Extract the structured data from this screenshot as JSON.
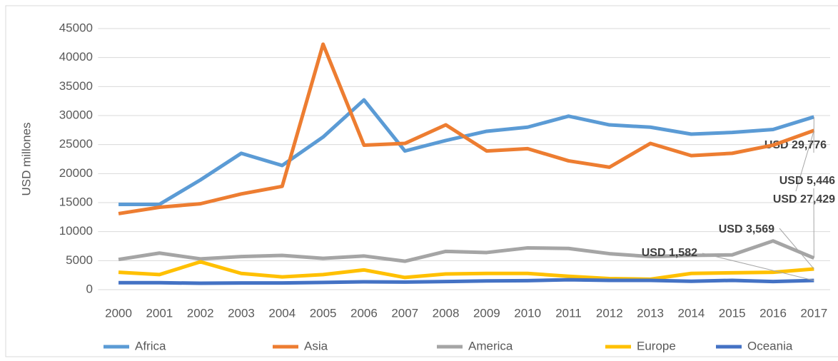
{
  "chart_data": {
    "type": "line",
    "y_label": "USD millones",
    "categories": [
      "2000",
      "2001",
      "2002",
      "2003",
      "2004",
      "2005",
      "2006",
      "2007",
      "2008",
      "2009",
      "2010",
      "2011",
      "2012",
      "2013",
      "2014",
      "2015",
      "2016",
      "2017"
    ],
    "ylim": [
      0,
      45000
    ],
    "yticks": [
      0,
      5000,
      10000,
      15000,
      20000,
      25000,
      30000,
      35000,
      40000,
      45000
    ],
    "grid": true,
    "legend": "bottom",
    "series": [
      {
        "name": "Africa",
        "color": "#5b9bd5",
        "values": [
          14700,
          14700,
          18900,
          23500,
          21400,
          26300,
          32700,
          23900,
          25700,
          27300,
          28000,
          29900,
          28400,
          28000,
          26800,
          27100,
          27600,
          29776
        ],
        "value_labels": [
          null,
          null,
          null,
          null,
          null,
          null,
          null,
          null,
          null,
          null,
          null,
          null,
          null,
          null,
          null,
          null,
          null,
          "USD 29,776"
        ]
      },
      {
        "name": "Asia",
        "color": "#ed7d31",
        "values": [
          13100,
          14200,
          14800,
          16500,
          17800,
          42300,
          24900,
          25200,
          28400,
          23900,
          24300,
          22200,
          21100,
          25200,
          23100,
          23500,
          24900,
          27429
        ],
        "value_labels": [
          null,
          null,
          null,
          null,
          null,
          null,
          null,
          null,
          null,
          null,
          null,
          null,
          null,
          null,
          null,
          null,
          null,
          "USD 27,429"
        ]
      },
      {
        "name": "America",
        "color": "#a5a5a5",
        "values": [
          5200,
          6300,
          5300,
          5700,
          5900,
          5400,
          5800,
          4900,
          6600,
          6400,
          7200,
          7100,
          6200,
          5700,
          5900,
          6000,
          8400,
          5446
        ],
        "value_labels": [
          null,
          null,
          null,
          null,
          null,
          null,
          null,
          null,
          null,
          null,
          null,
          null,
          null,
          null,
          null,
          null,
          null,
          "USD 5,446"
        ]
      },
      {
        "name": "Europe",
        "color": "#ffc000",
        "values": [
          3000,
          2600,
          4800,
          2800,
          2200,
          2600,
          3400,
          2100,
          2700,
          2800,
          2800,
          2300,
          1900,
          1800,
          2800,
          2900,
          3000,
          3569
        ],
        "value_labels": [
          null,
          null,
          null,
          null,
          null,
          null,
          null,
          null,
          null,
          null,
          null,
          null,
          null,
          null,
          null,
          null,
          null,
          "USD 3,569"
        ]
      },
      {
        "name": "Oceania",
        "color": "#4472c4",
        "values": [
          1200,
          1200,
          1100,
          1150,
          1150,
          1250,
          1350,
          1300,
          1400,
          1500,
          1550,
          1700,
          1600,
          1600,
          1450,
          1600,
          1400,
          1582
        ],
        "value_labels": [
          null,
          null,
          null,
          null,
          null,
          null,
          null,
          null,
          null,
          null,
          null,
          null,
          null,
          null,
          null,
          null,
          null,
          "USD 1,582"
        ]
      }
    ]
  }
}
